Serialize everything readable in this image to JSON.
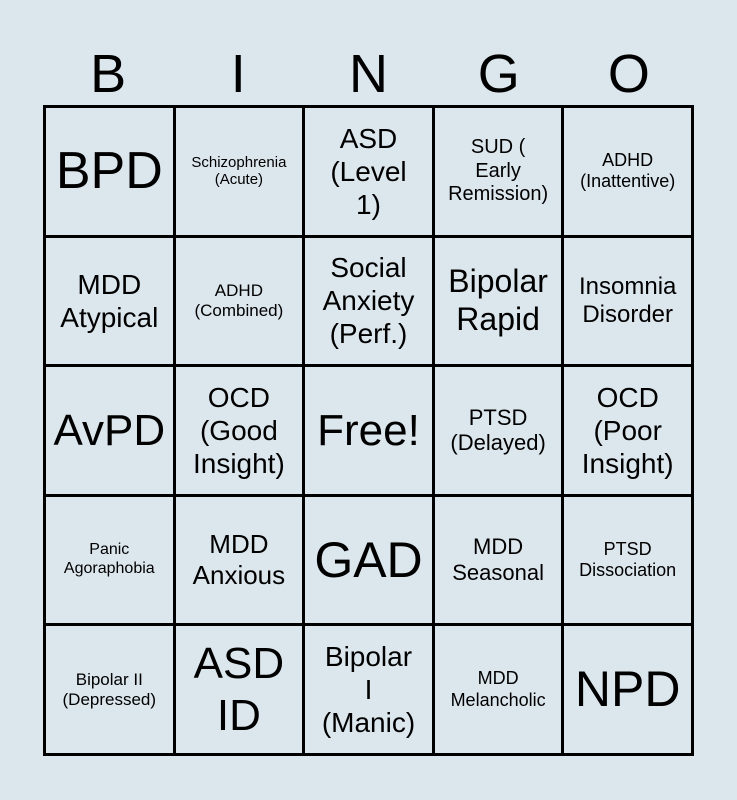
{
  "header": [
    "B",
    "I",
    "N",
    "G",
    "O"
  ],
  "cells": [
    {
      "text": "BPD",
      "size": 52
    },
    {
      "text": "Schizophrenia\n(Acute)",
      "size": 15
    },
    {
      "text": "ASD\n(Level\n1)",
      "size": 28
    },
    {
      "text": "SUD (\nEarly\nRemission)",
      "size": 20
    },
    {
      "text": "ADHD\n(Inattentive)",
      "size": 18
    },
    {
      "text": "MDD\nAtypical",
      "size": 28
    },
    {
      "text": "ADHD\n(Combined)",
      "size": 17
    },
    {
      "text": "Social\nAnxiety\n(Perf.)",
      "size": 28
    },
    {
      "text": "Bipolar\nRapid",
      "size": 32
    },
    {
      "text": "Insomnia\nDisorder",
      "size": 24
    },
    {
      "text": "AvPD",
      "size": 44
    },
    {
      "text": "OCD\n(Good\nInsight)",
      "size": 28
    },
    {
      "text": "Free!",
      "size": 44
    },
    {
      "text": "PTSD\n(Delayed)",
      "size": 22
    },
    {
      "text": "OCD\n(Poor\nInsight)",
      "size": 28
    },
    {
      "text": "Panic\nAgoraphobia",
      "size": 16
    },
    {
      "text": "MDD\nAnxious",
      "size": 26
    },
    {
      "text": "GAD",
      "size": 50
    },
    {
      "text": "MDD\nSeasonal",
      "size": 22
    },
    {
      "text": "PTSD\nDissociation",
      "size": 18
    },
    {
      "text": "Bipolar II\n(Depressed)",
      "size": 17
    },
    {
      "text": "ASD\nID",
      "size": 44
    },
    {
      "text": "Bipolar\nI\n(Manic)",
      "size": 28
    },
    {
      "text": "MDD\nMelancholic",
      "size": 18
    },
    {
      "text": "NPD",
      "size": 50
    }
  ]
}
